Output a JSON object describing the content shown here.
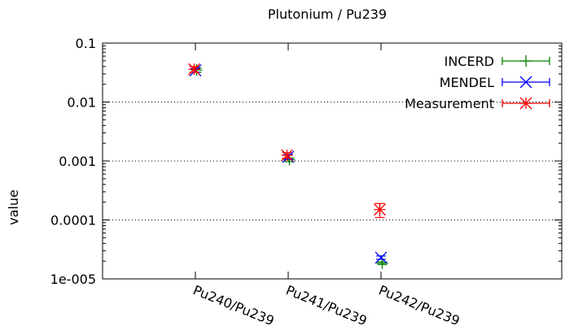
{
  "chart_data": {
    "type": "scatter",
    "title": "Plutonium / Pu239",
    "xlabel": "",
    "ylabel": "value",
    "y_scale": "log",
    "ylim": [
      1e-05,
      0.1
    ],
    "y_ticks": [
      {
        "value": 0.1,
        "label": "0.1"
      },
      {
        "value": 0.01,
        "label": "0.01"
      },
      {
        "value": 0.001,
        "label": "0.001"
      },
      {
        "value": 0.0001,
        "label": "0.0001"
      },
      {
        "value": 1e-05,
        "label": "1e-005"
      }
    ],
    "grid": "horizontal dotted",
    "legend_position": "top-right",
    "categories": [
      "Pu240/Pu239",
      "Pu241/Pu239",
      "Pu242/Pu239"
    ],
    "series": [
      {
        "name": "INCERD",
        "color": "#008000",
        "marker": "plus",
        "values": [
          0.035,
          0.00105,
          1.85e-05
        ],
        "err_low": [
          0.032,
          0.00097,
          1.75e-05
        ],
        "err_high": [
          0.038,
          0.00113,
          1.95e-05
        ]
      },
      {
        "name": "MENDEL",
        "color": "#0000ff",
        "marker": "x",
        "values": [
          0.0345,
          0.00118,
          2.3e-05
        ],
        "err_low": [
          0.032,
          0.00108,
          2.15e-05
        ],
        "err_high": [
          0.037,
          0.00128,
          2.45e-05
        ]
      },
      {
        "name": "Measurement",
        "color": "#ff0000",
        "marker": "star",
        "values": [
          0.036,
          0.00125,
          0.00015
        ],
        "err_low": [
          0.032,
          0.00112,
          0.00011
        ],
        "err_high": [
          0.04,
          0.00138,
          0.00019
        ]
      }
    ]
  }
}
